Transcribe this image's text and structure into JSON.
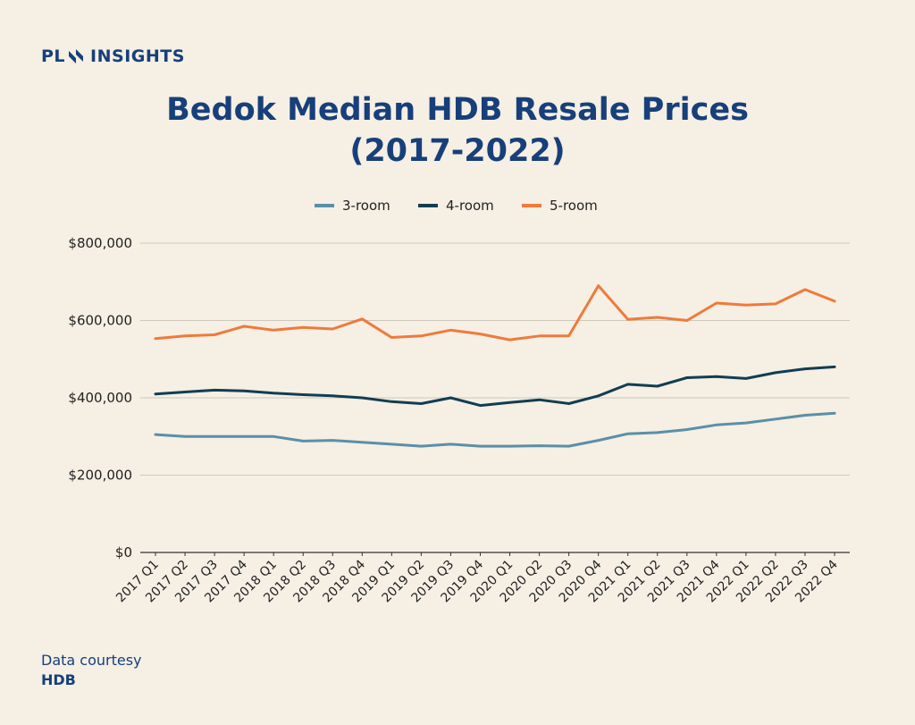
{
  "brand": {
    "prefix": "PL",
    "suffix": "INSIGHTS"
  },
  "title_line1": "Bedok Median HDB Resale Prices",
  "title_line2": "(2017-2022)",
  "footer": {
    "line1": "Data courtesy",
    "line2": "HDB"
  },
  "colors": {
    "3-room": "#5b8fa8",
    "4-room": "#123d52",
    "5-room": "#ef7a3b",
    "title": "#173f7a",
    "background": "#f5efe4"
  },
  "chart_data": {
    "type": "line",
    "title": "Bedok Median HDB Resale Prices (2017-2022)",
    "xlabel": "",
    "ylabel": "",
    "legend": "top-center",
    "grid": true,
    "ylim": [
      0,
      800000
    ],
    "yticks": [
      0,
      200000,
      400000,
      600000,
      800000
    ],
    "ytick_labels": [
      "$0",
      "$200,000",
      "$400,000",
      "$600,000",
      "$800,000"
    ],
    "categories": [
      "2017 Q1",
      "2017 Q2",
      "2017 Q3",
      "2017 Q4",
      "2018 Q1",
      "2018 Q2",
      "2018 Q3",
      "2018 Q4",
      "2019 Q1",
      "2019 Q2",
      "2019 Q3",
      "2019 Q4",
      "2020 Q1",
      "2020 Q2",
      "2020 Q3",
      "2020 Q4",
      "2021 Q1",
      "2021 Q2",
      "2021 Q3",
      "2021 Q4",
      "2022 Q1",
      "2022 Q2",
      "2022 Q3",
      "2022 Q4"
    ],
    "series": [
      {
        "name": "3-room",
        "values": [
          305000,
          300000,
          300000,
          300000,
          300000,
          288000,
          290000,
          285000,
          280000,
          275000,
          280000,
          275000,
          275000,
          276000,
          275000,
          290000,
          307000,
          310000,
          318000,
          330000,
          335000,
          345000,
          355000,
          360000
        ]
      },
      {
        "name": "4-room",
        "values": [
          410000,
          415000,
          420000,
          418000,
          412000,
          408000,
          405000,
          400000,
          390000,
          385000,
          400000,
          380000,
          388000,
          395000,
          385000,
          405000,
          435000,
          430000,
          452000,
          455000,
          450000,
          465000,
          475000,
          480000
        ]
      },
      {
        "name": "5-room",
        "values": [
          553000,
          560000,
          563000,
          585000,
          575000,
          582000,
          578000,
          604000,
          556000,
          560000,
          575000,
          565000,
          550000,
          560000,
          560000,
          690000,
          603000,
          608000,
          600000,
          645000,
          640000,
          643000,
          680000,
          650000
        ]
      }
    ]
  }
}
